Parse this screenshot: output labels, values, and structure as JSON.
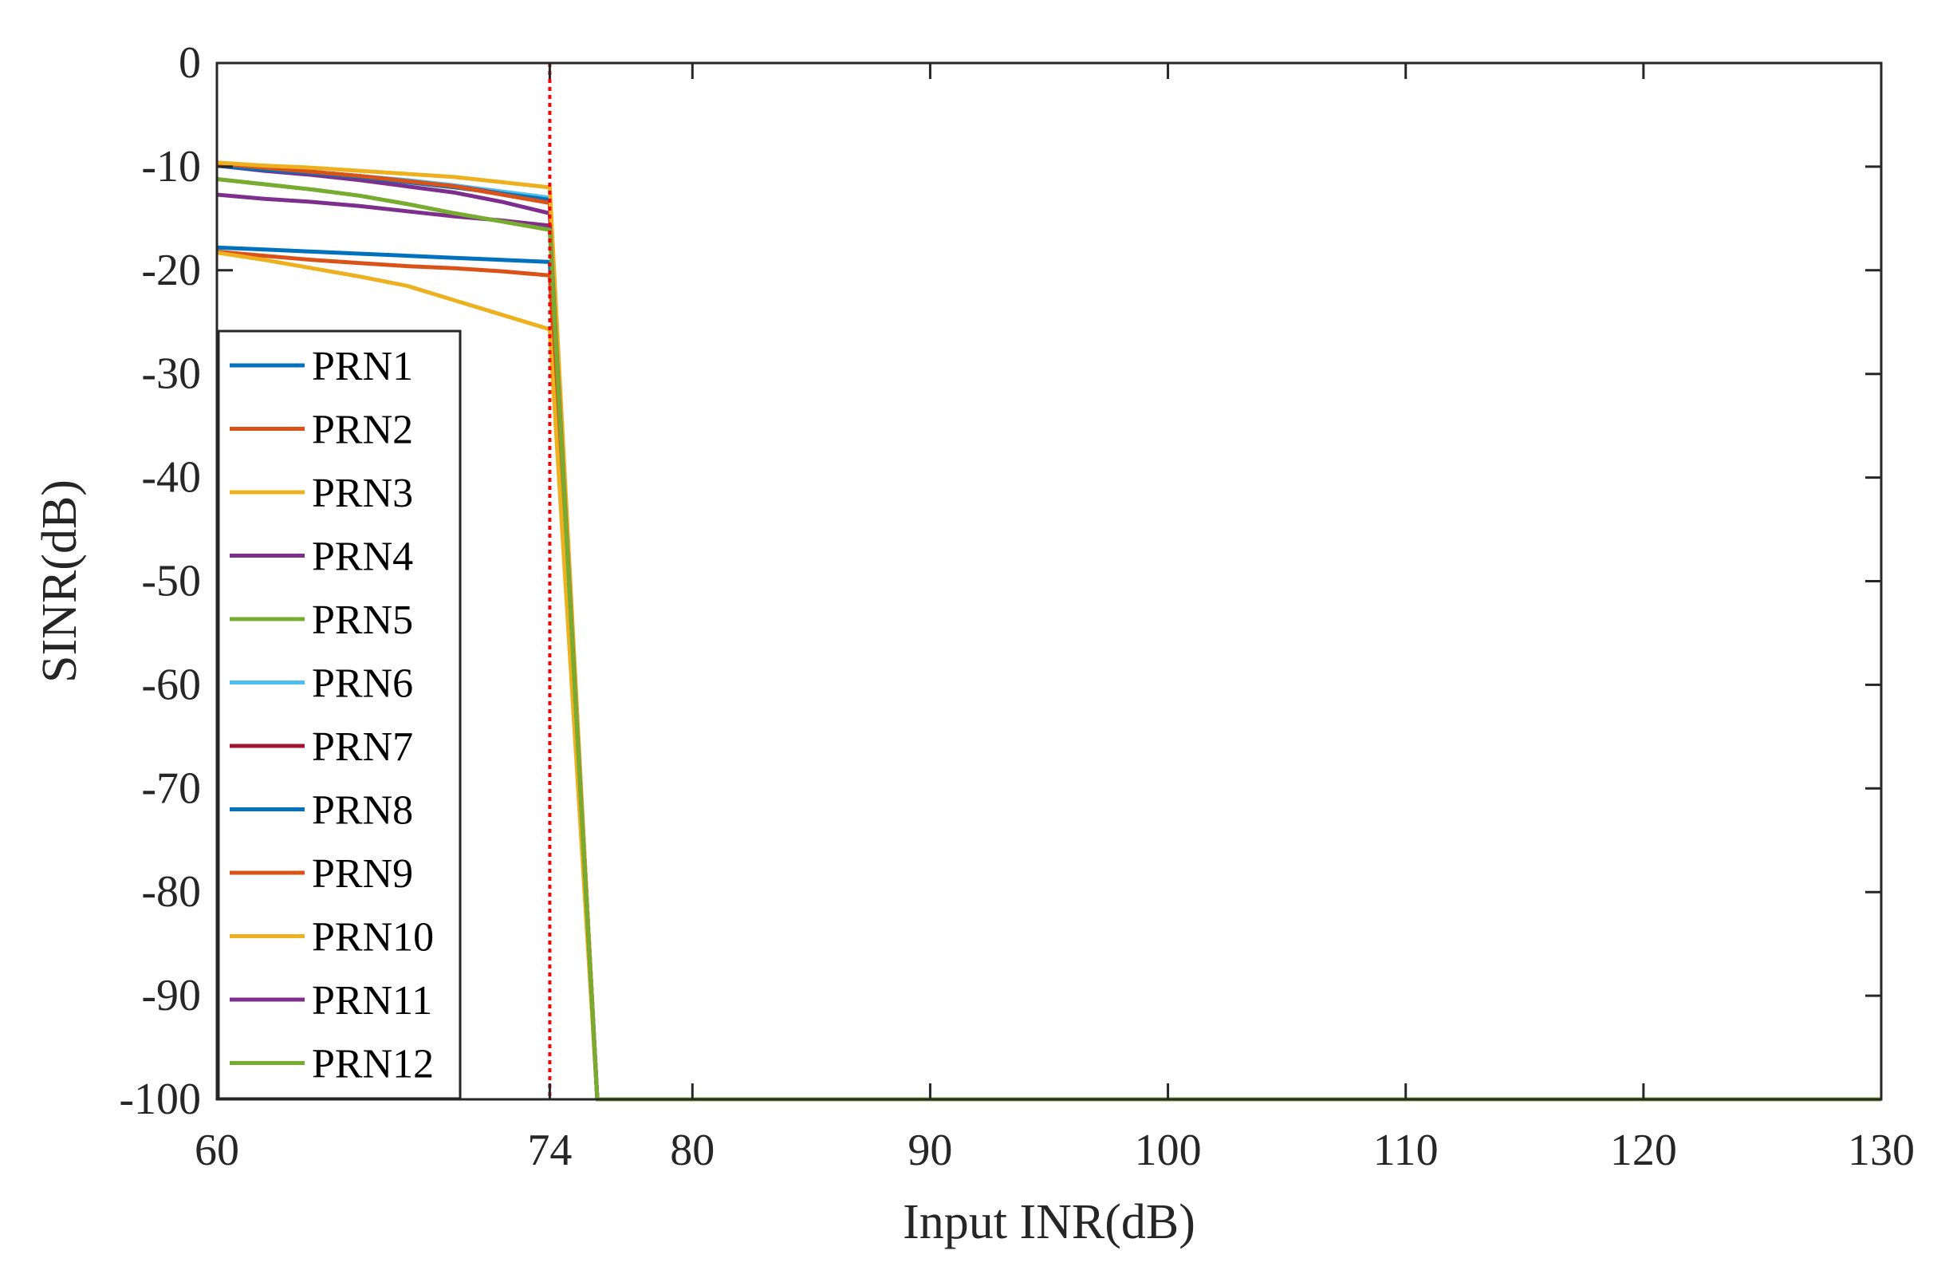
{
  "chart_data": {
    "type": "line",
    "title": "",
    "xlabel": "Input INR(dB)",
    "ylabel": "SINR(dB)",
    "xlim": [
      60,
      130
    ],
    "ylim": [
      -100,
      0
    ],
    "xticks": [
      60,
      74,
      80,
      90,
      100,
      110,
      120,
      130
    ],
    "yticks": [
      0,
      -10,
      -20,
      -30,
      -40,
      -50,
      -60,
      -70,
      -80,
      -90,
      -100
    ],
    "grid": false,
    "legend_position": "west (inside, lower-left)",
    "annotations": [
      {
        "type": "vertical-dotted-line",
        "x": 74,
        "color": "#FF0000"
      }
    ],
    "x": [
      60,
      62,
      64,
      66,
      68,
      70,
      72,
      74,
      76,
      130
    ],
    "series": [
      {
        "name": "PRN1",
        "color": "#0072BD",
        "values": [
          -17.8,
          -18.0,
          -18.2,
          -18.4,
          -18.6,
          -18.8,
          -19.0,
          -19.2,
          -100,
          -100
        ]
      },
      {
        "name": "PRN2",
        "color": "#D95319",
        "values": [
          -18.2,
          -18.6,
          -19.0,
          -19.3,
          -19.6,
          -19.8,
          -20.1,
          -20.5,
          -100,
          -100
        ]
      },
      {
        "name": "PRN3",
        "color": "#EDB120",
        "values": [
          -18.3,
          -19.0,
          -19.8,
          -20.6,
          -21.5,
          -22.9,
          -24.3,
          -25.7,
          -100,
          -100
        ]
      },
      {
        "name": "PRN4",
        "color": "#7E2F8E",
        "values": [
          -9.9,
          -10.4,
          -10.8,
          -11.3,
          -11.9,
          -12.5,
          -13.4,
          -14.5,
          -100,
          -100
        ]
      },
      {
        "name": "PRN5",
        "color": "#77AC30",
        "values": [
          -11.2,
          -11.7,
          -12.2,
          -12.8,
          -13.6,
          -14.5,
          -15.3,
          -16.1,
          -100,
          -100
        ]
      },
      {
        "name": "PRN6",
        "color": "#4DBEEE",
        "values": [
          -9.8,
          -10.2,
          -10.5,
          -10.9,
          -11.3,
          -11.8,
          -12.4,
          -13.0,
          -100,
          -100
        ]
      },
      {
        "name": "PRN7",
        "color": "#A2142F",
        "values": [
          -9.8,
          -10.2,
          -10.5,
          -10.9,
          -11.4,
          -11.9,
          -12.6,
          -13.3,
          -100,
          -100
        ]
      },
      {
        "name": "PRN8",
        "color": "#0072BD",
        "values": [
          -9.9,
          -10.3,
          -10.6,
          -11.0,
          -11.5,
          -12.0,
          -12.6,
          -13.2,
          -100,
          -100
        ]
      },
      {
        "name": "PRN9",
        "color": "#D95319",
        "values": [
          -9.7,
          -10.1,
          -10.5,
          -10.9,
          -11.4,
          -11.9,
          -12.7,
          -13.5,
          -100,
          -100
        ]
      },
      {
        "name": "PRN10",
        "color": "#EDB120",
        "values": [
          -9.6,
          -9.9,
          -10.1,
          -10.4,
          -10.7,
          -11.0,
          -11.5,
          -12.0,
          -100,
          -100
        ]
      },
      {
        "name": "PRN11",
        "color": "#7E2F8E",
        "values": [
          -12.7,
          -13.1,
          -13.4,
          -13.8,
          -14.3,
          -14.8,
          -15.2,
          -15.7,
          -100,
          -100
        ]
      },
      {
        "name": "PRN12",
        "color": "#77AC30",
        "values": [
          -11.2,
          -11.7,
          -12.2,
          -12.8,
          -13.6,
          -14.5,
          -15.3,
          -16.1,
          -100,
          -100
        ]
      }
    ]
  },
  "axes": {
    "xlabel": "Input INR(dB)",
    "ylabel": "SINR(dB)",
    "xtick_labels": [
      "60",
      "74",
      "80",
      "90",
      "100",
      "110",
      "120",
      "130"
    ],
    "ytick_labels": [
      "0",
      "-10",
      "-20",
      "-30",
      "-40",
      "-50",
      "-60",
      "-70",
      "-80",
      "-90",
      "-100"
    ]
  },
  "legend": {
    "items": [
      "PRN1",
      "PRN2",
      "PRN3",
      "PRN4",
      "PRN5",
      "PRN6",
      "PRN7",
      "PRN8",
      "PRN9",
      "PRN10",
      "PRN11",
      "PRN12"
    ]
  }
}
